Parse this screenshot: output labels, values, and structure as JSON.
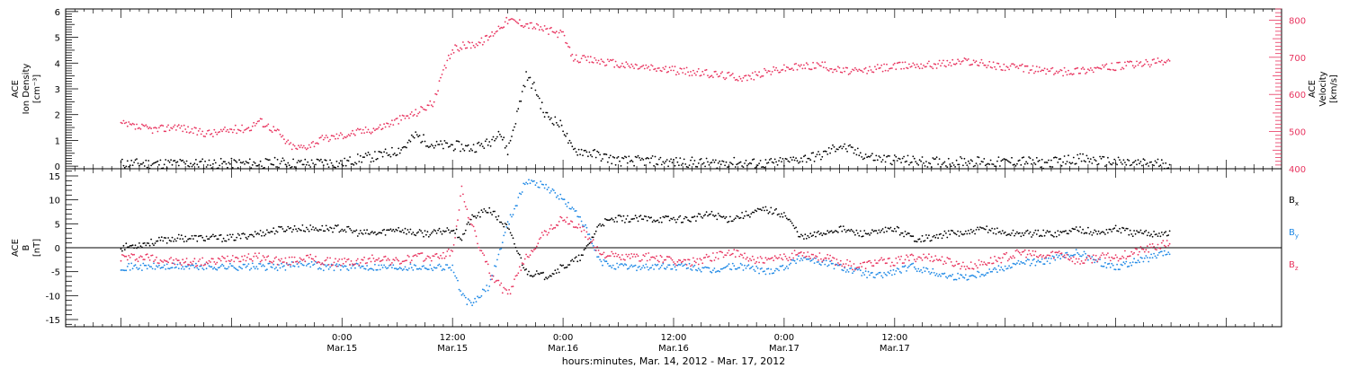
{
  "chart_data": [
    {
      "type": "scatter",
      "panel": "top",
      "ylabel_left": [
        "ACE",
        "Ion Density",
        "[cm⁻³]"
      ],
      "ylabel_right": [
        "ACE",
        "Velocity",
        "[km/s]"
      ],
      "ylim_left": [
        -0.1,
        6.1
      ],
      "ylim_right": [
        400,
        830
      ],
      "yticks_left": [
        "0",
        "1",
        "2",
        "3",
        "4",
        "5",
        "6"
      ],
      "yticks_right": [
        "400",
        "500",
        "600",
        "700",
        "800"
      ],
      "series": [
        {
          "name": "Ion Density",
          "axis": "left",
          "color": "#000000",
          "x_hours": [
            0,
            6,
            11,
            13,
            14,
            16,
            17,
            19,
            20,
            21,
            22,
            24,
            26,
            28,
            30,
            31,
            32,
            33,
            34,
            36,
            38,
            40,
            41,
            42,
            43,
            44,
            45,
            46,
            47,
            48,
            49,
            50,
            52,
            54,
            56,
            58,
            60,
            62,
            64,
            66,
            68,
            70,
            72,
            74,
            76,
            78,
            80,
            82,
            84,
            86,
            88,
            90,
            92,
            94,
            96,
            98,
            100,
            102,
            104,
            106,
            108,
            110,
            112,
            114
          ],
          "y": [
            0.1,
            0.1,
            0.1,
            0.1,
            0.1,
            0.1,
            0.15,
            0.1,
            0.1,
            0.1,
            0.15,
            0.1,
            0.3,
            0.4,
            0.6,
            0.8,
            1.2,
            1.0,
            0.8,
            0.8,
            0.7,
            0.9,
            1.4,
            0.6,
            2.0,
            3.5,
            3.0,
            2.0,
            1.8,
            1.5,
            0.6,
            0.6,
            0.4,
            0.2,
            0.2,
            0.2,
            0.15,
            0.15,
            0.1,
            0.15,
            0.1,
            0.1,
            0.15,
            0.3,
            0.4,
            0.8,
            0.5,
            0.3,
            0.25,
            0.2,
            0.15,
            0.15,
            0.2,
            0.15,
            0.15,
            0.2,
            0.1,
            0.2,
            0.3,
            0.2,
            0.15,
            0.1,
            0.1,
            0.1
          ]
        },
        {
          "name": "Velocity",
          "axis": "right",
          "color": "#e8345f",
          "x_hours": [
            0,
            2,
            4,
            6,
            8,
            10,
            12,
            14,
            15,
            16,
            17,
            18,
            19,
            20,
            21,
            22,
            24,
            26,
            28,
            30,
            32,
            34,
            35,
            36,
            37,
            38,
            39,
            40,
            41,
            42,
            44,
            46,
            48,
            49,
            50,
            52,
            54,
            56,
            58,
            60,
            62,
            64,
            66,
            68,
            70,
            72,
            74,
            76,
            78,
            80,
            82,
            84,
            86,
            88,
            90,
            92,
            94,
            96,
            98,
            100,
            102,
            104,
            106,
            108,
            110,
            112,
            114
          ],
          "y": [
            520,
            510,
            505,
            515,
            500,
            495,
            505,
            510,
            530,
            515,
            500,
            470,
            455,
            460,
            470,
            480,
            490,
            500,
            510,
            530,
            550,
            580,
            660,
            720,
            730,
            735,
            740,
            755,
            780,
            800,
            790,
            775,
            760,
            700,
            695,
            690,
            680,
            675,
            670,
            665,
            660,
            655,
            650,
            645,
            660,
            670,
            675,
            680,
            665,
            660,
            670,
            675,
            680,
            680,
            685,
            690,
            680,
            675,
            670,
            665,
            660,
            665,
            670,
            675,
            680,
            685,
            690
          ]
        }
      ]
    },
    {
      "type": "scatter",
      "panel": "bottom",
      "ylabel": [
        "ACE",
        "B",
        "[nT]"
      ],
      "ylim": [
        -16.5,
        16.5
      ],
      "yticks": [
        "-15",
        "-10",
        "-5",
        "0",
        "5",
        "10",
        "15"
      ],
      "zero_line": true,
      "legend": {
        "placement": "right",
        "entries": [
          {
            "label": "B",
            "sub": "x",
            "color": "#000000"
          },
          {
            "label": "B",
            "sub": "y",
            "color": "#1e88e5"
          },
          {
            "label": "B",
            "sub": "z",
            "color": "#e8345f"
          }
        ]
      },
      "series": [
        {
          "name": "Bx",
          "color": "#000000",
          "x_hours": [
            0,
            3,
            6,
            8,
            10,
            12,
            15,
            18,
            20,
            22,
            24,
            26,
            28,
            30,
            32,
            34,
            36,
            37,
            38,
            40,
            42,
            44,
            46,
            48,
            50,
            52,
            54,
            56,
            58,
            60,
            62,
            64,
            66,
            68,
            70,
            72,
            74,
            76,
            78,
            80,
            82,
            84,
            86,
            88,
            90,
            92,
            94,
            96,
            98,
            100,
            102,
            104,
            106,
            108,
            110,
            112,
            114
          ],
          "y": [
            0,
            1,
            2,
            2,
            2,
            2,
            3,
            4,
            4,
            4,
            4,
            3,
            3,
            4,
            3,
            3,
            4,
            2,
            6,
            8,
            4,
            -5,
            -6,
            -4,
            -2,
            5,
            6,
            6,
            6,
            6,
            6,
            7,
            6,
            7,
            8,
            7,
            2,
            3,
            4,
            3,
            3,
            4,
            2,
            2,
            3,
            3,
            4,
            3,
            3,
            3,
            3,
            4,
            3,
            4,
            3,
            3,
            3
          ]
        },
        {
          "name": "By",
          "color": "#1e88e5",
          "x_hours": [
            0,
            3,
            6,
            8,
            10,
            12,
            15,
            18,
            20,
            22,
            24,
            26,
            28,
            30,
            32,
            34,
            36,
            37,
            38,
            40,
            42,
            44,
            46,
            48,
            50,
            52,
            54,
            56,
            58,
            60,
            62,
            64,
            66,
            68,
            70,
            72,
            74,
            76,
            78,
            80,
            82,
            84,
            86,
            88,
            90,
            92,
            94,
            96,
            98,
            100,
            102,
            104,
            106,
            108,
            110,
            112,
            114
          ],
          "y": [
            -4,
            -4,
            -4,
            -4,
            -4,
            -4,
            -4,
            -4,
            -3,
            -4,
            -4,
            -4,
            -4,
            -4,
            -4,
            -4,
            -4,
            -10,
            -12,
            -8,
            5,
            14,
            13,
            10,
            6,
            -3,
            -4,
            -4,
            -4,
            -4,
            -4,
            -5,
            -4,
            -4,
            -5,
            -4,
            -2,
            -3,
            -4,
            -5,
            -6,
            -5,
            -4,
            -5,
            -6,
            -6,
            -5,
            -4,
            -3,
            -3,
            -2,
            -1,
            -3,
            -4,
            -3,
            -2,
            -1
          ]
        },
        {
          "name": "Bz",
          "color": "#e8345f",
          "x_hours": [
            0,
            3,
            6,
            8,
            10,
            12,
            15,
            18,
            20,
            22,
            24,
            26,
            28,
            30,
            32,
            34,
            36,
            37,
            38,
            40,
            42,
            44,
            46,
            48,
            50,
            52,
            54,
            56,
            58,
            60,
            62,
            64,
            66,
            68,
            70,
            72,
            74,
            76,
            78,
            80,
            82,
            84,
            86,
            88,
            90,
            92,
            94,
            96,
            98,
            100,
            102,
            104,
            106,
            108,
            110,
            112,
            114
          ],
          "y": [
            -2,
            -2,
            -3,
            -3,
            -3,
            -2,
            -2,
            -3,
            -2,
            -3,
            -3,
            -3,
            -2,
            -3,
            -2,
            -2,
            -1,
            12,
            5,
            -5,
            -10,
            -2,
            3,
            6,
            4,
            -1,
            -2,
            -2,
            -2,
            -3,
            -3,
            -2,
            -1,
            -2,
            -3,
            -2,
            -1,
            -2,
            -3,
            -4,
            -3,
            -3,
            -2,
            -2,
            -3,
            -4,
            -3,
            -2,
            -1,
            -2,
            -1,
            -3,
            -2,
            -2,
            -1,
            0,
            1
          ]
        }
      ]
    }
  ],
  "x_axis": {
    "xlim_hours": [
      -6,
      126
    ],
    "ticks": [
      {
        "hours": 24,
        "time": "0:00",
        "date": "Mar.15"
      },
      {
        "hours": 36,
        "time": "12:00",
        "date": "Mar.15"
      },
      {
        "hours": 48,
        "time": "0:00",
        "date": "Mar.16"
      },
      {
        "hours": 60,
        "time": "12:00",
        "date": "Mar.16"
      },
      {
        "hours": 72,
        "time": "0:00",
        "date": "Mar.17"
      },
      {
        "hours": 84,
        "time": "12:00",
        "date": "Mar.17"
      }
    ],
    "xlabel": "hours:minutes, Mar. 14, 2012 - Mar. 17, 2012"
  }
}
